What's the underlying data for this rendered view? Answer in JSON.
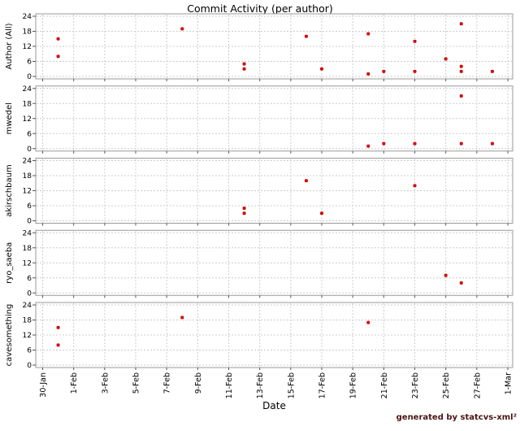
{
  "title": "Commit Activity (per author)",
  "x_axis_label": "Date",
  "watermark": "generated by statcvs-xml²",
  "colors": {
    "point": "#e60000",
    "point_edge": "#aa0000",
    "grid": "#cccccc",
    "plot_border": "#999999",
    "tick": "#555555",
    "text": "#000000",
    "watermark_text": "#4a1414"
  },
  "chart_data": {
    "type": "scatter",
    "title": "Commit Activity (per author)",
    "xlabel": "Date",
    "ylabel_per_subplot": true,
    "grid": "dashed",
    "legend": "none",
    "y_ticks": [
      0,
      6,
      12,
      18,
      24
    ],
    "y_range": [
      0,
      24
    ],
    "x_ticks": [
      {
        "label": "30-Jan",
        "day": 0
      },
      {
        "label": "1-Feb",
        "day": 2
      },
      {
        "label": "3-Feb",
        "day": 4
      },
      {
        "label": "5-Feb",
        "day": 6
      },
      {
        "label": "7-Feb",
        "day": 8
      },
      {
        "label": "9-Feb",
        "day": 10
      },
      {
        "label": "11-Feb",
        "day": 12
      },
      {
        "label": "13-Feb",
        "day": 14
      },
      {
        "label": "15-Feb",
        "day": 16
      },
      {
        "label": "17-Feb",
        "day": 18
      },
      {
        "label": "19-Feb",
        "day": 20
      },
      {
        "label": "21-Feb",
        "day": 22
      },
      {
        "label": "23-Feb",
        "day": 24
      },
      {
        "label": "25-Feb",
        "day": 26
      },
      {
        "label": "27-Feb",
        "day": 28
      },
      {
        "label": "1-Mar",
        "day": 30
      }
    ],
    "subplots": [
      {
        "author": "Author (All)",
        "points": [
          {
            "date": "31-Jan",
            "day": 1,
            "commits": 15
          },
          {
            "date": "31-Jan",
            "day": 1,
            "commits": 8
          },
          {
            "date": "8-Feb",
            "day": 9,
            "commits": 19
          },
          {
            "date": "12-Feb",
            "day": 13,
            "commits": 5
          },
          {
            "date": "12-Feb",
            "day": 13,
            "commits": 3
          },
          {
            "date": "16-Feb",
            "day": 17,
            "commits": 16
          },
          {
            "date": "17-Feb",
            "day": 18,
            "commits": 3
          },
          {
            "date": "20-Feb",
            "day": 21,
            "commits": 17
          },
          {
            "date": "20-Feb",
            "day": 21,
            "commits": 1
          },
          {
            "date": "21-Feb",
            "day": 22,
            "commits": 2
          },
          {
            "date": "23-Feb",
            "day": 24,
            "commits": 14
          },
          {
            "date": "23-Feb",
            "day": 24,
            "commits": 2
          },
          {
            "date": "25-Feb",
            "day": 26,
            "commits": 7
          },
          {
            "date": "26-Feb",
            "day": 27,
            "commits": 21
          },
          {
            "date": "26-Feb",
            "day": 27,
            "commits": 4
          },
          {
            "date": "26-Feb",
            "day": 27,
            "commits": 2
          },
          {
            "date": "28-Feb",
            "day": 29,
            "commits": 2
          }
        ]
      },
      {
        "author": "mwedel",
        "points": [
          {
            "date": "20-Feb",
            "day": 21,
            "commits": 1
          },
          {
            "date": "21-Feb",
            "day": 22,
            "commits": 2
          },
          {
            "date": "23-Feb",
            "day": 24,
            "commits": 2
          },
          {
            "date": "26-Feb",
            "day": 27,
            "commits": 21
          },
          {
            "date": "26-Feb",
            "day": 27,
            "commits": 2
          },
          {
            "date": "28-Feb",
            "day": 29,
            "commits": 2
          }
        ]
      },
      {
        "author": "akirschbaum",
        "points": [
          {
            "date": "12-Feb",
            "day": 13,
            "commits": 5
          },
          {
            "date": "12-Feb",
            "day": 13,
            "commits": 3
          },
          {
            "date": "16-Feb",
            "day": 17,
            "commits": 16
          },
          {
            "date": "17-Feb",
            "day": 18,
            "commits": 3
          },
          {
            "date": "23-Feb",
            "day": 24,
            "commits": 14
          }
        ]
      },
      {
        "author": "ryo_saeba",
        "points": [
          {
            "date": "25-Feb",
            "day": 26,
            "commits": 7
          },
          {
            "date": "26-Feb",
            "day": 27,
            "commits": 4
          }
        ]
      },
      {
        "author": "cavesomething",
        "points": [
          {
            "date": "31-Jan",
            "day": 1,
            "commits": 15
          },
          {
            "date": "31-Jan",
            "day": 1,
            "commits": 8
          },
          {
            "date": "8-Feb",
            "day": 9,
            "commits": 19
          },
          {
            "date": "20-Feb",
            "day": 21,
            "commits": 17
          }
        ]
      }
    ]
  }
}
